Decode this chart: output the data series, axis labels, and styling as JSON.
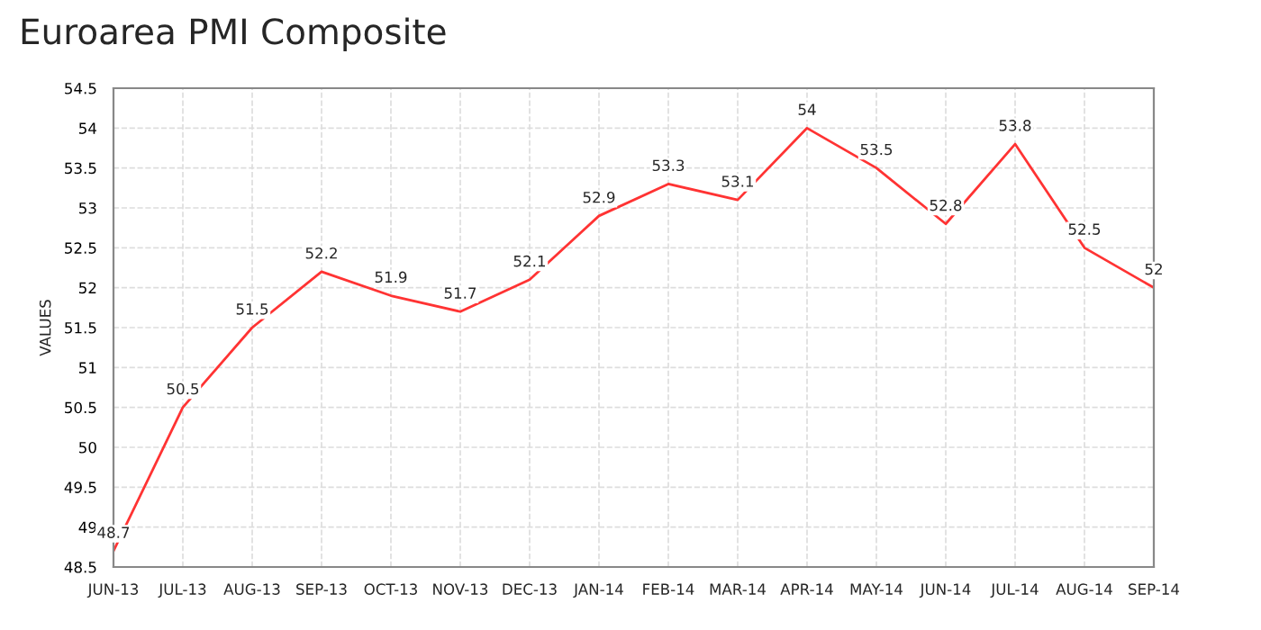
{
  "chart_data": {
    "type": "line",
    "title": "Euroarea PMI Composite",
    "ylabel": "VALUES",
    "categories": [
      "JUN-13",
      "JUL-13",
      "AUG-13",
      "SEP-13",
      "OCT-13",
      "NOV-13",
      "DEC-13",
      "JAN-14",
      "FEB-14",
      "MAR-14",
      "APR-14",
      "MAY-14",
      "JUN-14",
      "JUL-14",
      "AUG-14",
      "SEP-14"
    ],
    "series": [
      {
        "color": "#ff3333",
        "values": [
          48.7,
          50.5,
          51.5,
          52.2,
          51.9,
          51.7,
          52.1,
          52.9,
          53.3,
          53.1,
          54,
          53.5,
          52.8,
          53.8,
          52.5,
          52
        ]
      }
    ],
    "ylim": [
      48.5,
      54.5
    ],
    "yticks": [
      48.5,
      49,
      49.5,
      50,
      50.5,
      51,
      51.5,
      52,
      52.5,
      53,
      53.5,
      54,
      54.5
    ],
    "grid": true,
    "data_labels": true,
    "marker": "none",
    "line_style": "solid"
  }
}
